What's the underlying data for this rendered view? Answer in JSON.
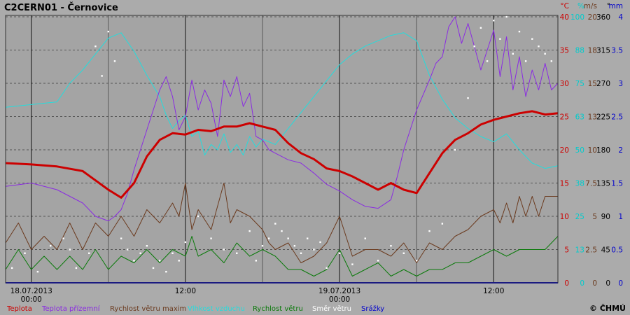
{
  "chart_data": {
    "type": "line",
    "title": "C2CERN01 - Černovice",
    "copyright": "© ČHMÚ",
    "x_axis": {
      "range": [
        "2013-07-18 00:00",
        "2013-07-19 18:00"
      ],
      "ticks": [
        {
          "line1": "18.07.2013",
          "line2": "00:00",
          "t": 0
        },
        {
          "line1": "12:00",
          "line2": "",
          "t": 12
        },
        {
          "line1": "19.07.2013",
          "line2": "00:00",
          "t": 24
        },
        {
          "line1": "12:00",
          "line2": "",
          "t": 36
        }
      ]
    },
    "y_axes": [
      {
        "unit": "°C",
        "color": "#cc0000",
        "ticks": [
          "0",
          "5",
          "10",
          "15",
          "20",
          "25",
          "30",
          "35",
          "40"
        ]
      },
      {
        "unit": "%",
        "color": "#00cccc",
        "ticks": [
          "0",
          "13",
          "25",
          "38",
          "50",
          "63",
          "75",
          "88",
          "100"
        ]
      },
      {
        "unit": "m/s",
        "color": "#6b3a1e",
        "ticks": [
          "0",
          "2.5",
          "5",
          "7.5",
          "10",
          "13",
          "15",
          "18",
          "20"
        ]
      },
      {
        "unit": "°",
        "color": "#000000",
        "ticks": [
          "0",
          "45",
          "90",
          "135",
          "180",
          "225",
          "270",
          "315",
          "360"
        ]
      },
      {
        "unit": "mm",
        "color": "#0000cc",
        "ticks": [
          "0",
          "0.5",
          "1",
          "1.5",
          "2",
          "2.5",
          "3",
          "3.5",
          "4"
        ]
      }
    ],
    "legend": [
      {
        "label": "Teplota",
        "color": "#cc0000"
      },
      {
        "label": "Teplota přízemní",
        "color": "#8a2be2"
      },
      {
        "label": "Rychlost větru maxim",
        "color": "#6b3a1e"
      },
      {
        "label": "Vlhkost vzduchu",
        "color": "#22dddd"
      },
      {
        "label": "Rychlost větru",
        "color": "#0a7a0a"
      },
      {
        "label": "Směr větru",
        "color": "#ffffff"
      },
      {
        "label": "Srážky",
        "color": "#0000cc"
      }
    ],
    "series": [
      {
        "name": "Teplota",
        "color": "#cc0000",
        "axis": 0,
        "width": 3,
        "x": [
          -2,
          0,
          2,
          4,
          6,
          7,
          8,
          9,
          10,
          11,
          12,
          13,
          14,
          15,
          16,
          17,
          18,
          19,
          20,
          21,
          22,
          23,
          24,
          25,
          26,
          27,
          28,
          29,
          30,
          31,
          32,
          33,
          34,
          35,
          36,
          37,
          38,
          39,
          40,
          41
        ],
        "y": [
          18,
          17.8,
          17.5,
          16.8,
          14,
          12.8,
          15,
          19,
          21.5,
          22.5,
          22.3,
          23,
          22.8,
          23.5,
          23.5,
          24,
          23.5,
          23,
          21,
          19.5,
          18.6,
          17.2,
          16.8,
          16,
          15,
          14,
          15,
          14,
          13.5,
          16.5,
          19.5,
          21.5,
          22.5,
          23.8,
          24.5,
          25,
          25.5,
          25.8,
          25.3,
          25.5
        ]
      },
      {
        "name": "Teplota přízemní",
        "color": "#8a2be2",
        "axis": 0,
        "width": 1,
        "x": [
          -2,
          0,
          2,
          4,
          5,
          6,
          6.5,
          7,
          7.5,
          8,
          9,
          10,
          10.5,
          11,
          11.5,
          12,
          12.5,
          13,
          13.5,
          14,
          14.5,
          15,
          15.5,
          16,
          16.5,
          17,
          17.5,
          18,
          18.5,
          19,
          20,
          21,
          22,
          23,
          24,
          25,
          26,
          27,
          28,
          28.5,
          29,
          30,
          31,
          31.5,
          32,
          32.5,
          33,
          33.5,
          34,
          35,
          36,
          36.5,
          37,
          37.5,
          38,
          38.5,
          39,
          39.5,
          40,
          40.5,
          41
        ],
        "y": [
          14.5,
          15,
          14,
          12,
          10,
          9.3,
          10,
          11,
          13.5,
          17,
          23,
          29,
          31,
          28,
          23,
          25,
          30.5,
          26,
          29,
          27,
          22,
          30.5,
          28,
          31,
          26.5,
          28.5,
          22,
          21.5,
          20,
          19.5,
          18.5,
          18,
          16.5,
          14.8,
          13.8,
          12.5,
          11.5,
          11.2,
          12.5,
          16,
          20,
          26,
          30.5,
          33,
          34,
          38.5,
          40,
          36,
          39,
          32,
          38,
          31,
          37,
          29,
          34,
          28,
          32,
          29,
          33,
          29,
          30
        ]
      },
      {
        "name": "Vlhkost vzduchu",
        "color": "#22dddd",
        "axis": 1,
        "width": 1,
        "x": [
          -2,
          0,
          2,
          3,
          4,
          5,
          6,
          7,
          8,
          9,
          10,
          10.5,
          11,
          11.5,
          12,
          12.5,
          13,
          13.5,
          14,
          14.5,
          15,
          15.5,
          16,
          16.5,
          17,
          17.5,
          18,
          19,
          20,
          21,
          22,
          23,
          24,
          25,
          26,
          27,
          28,
          29,
          30,
          31,
          32,
          33,
          34,
          35,
          36,
          37,
          38,
          39,
          40,
          41
        ],
        "y": [
          66,
          67,
          68,
          75,
          80,
          86,
          92,
          94,
          87,
          78,
          70,
          63,
          58,
          61,
          63,
          55,
          57,
          48,
          52,
          50,
          56,
          49,
          52,
          48,
          55,
          51,
          54,
          52,
          58,
          64,
          70,
          76,
          82,
          86,
          89,
          91,
          93,
          94,
          91,
          78,
          69,
          62,
          58,
          55,
          53,
          56,
          50,
          45,
          43,
          44
        ]
      },
      {
        "name": "Rychlost větru maxim",
        "color": "#6b3a1e",
        "axis": 2,
        "width": 1,
        "x": [
          -2,
          -1,
          0,
          1,
          2,
          3,
          4,
          5,
          6,
          7,
          8,
          9,
          10,
          11,
          11.5,
          12,
          12.5,
          13,
          14,
          15,
          15.5,
          16,
          17,
          18,
          18.5,
          19,
          20,
          21,
          22,
          23,
          24,
          25,
          26,
          27,
          28,
          29,
          30,
          31,
          32,
          33,
          34,
          35,
          36,
          36.5,
          37,
          37.5,
          38,
          38.5,
          39,
          39.5,
          40,
          41
        ],
        "y": [
          3,
          4.5,
          2.5,
          3.5,
          2.5,
          4.5,
          2.5,
          4.5,
          3.5,
          5,
          3.5,
          5.5,
          4.5,
          6,
          5,
          7.5,
          4,
          5.5,
          4,
          7.5,
          4.5,
          5.5,
          5,
          4,
          3,
          2.5,
          3,
          1.5,
          2,
          3,
          5,
          2,
          2.5,
          2.5,
          2,
          3,
          1.5,
          3,
          2.5,
          3.5,
          4,
          5,
          5.5,
          4.5,
          6,
          4.5,
          6.5,
          5,
          6.5,
          5,
          6.5,
          6.5
        ]
      },
      {
        "name": "Rychlost větru",
        "color": "#0a7a0a",
        "axis": 2,
        "width": 1,
        "x": [
          -2,
          -1,
          0,
          1,
          2,
          3,
          4,
          5,
          6,
          7,
          8,
          9,
          10,
          11,
          12,
          12.5,
          13,
          14,
          15,
          16,
          17,
          18,
          19,
          20,
          21,
          22,
          23,
          24,
          25,
          26,
          27,
          28,
          29,
          30,
          31,
          32,
          33,
          34,
          35,
          36,
          37,
          38,
          39,
          40,
          41
        ],
        "y": [
          1,
          2.5,
          1,
          2,
          1,
          2,
          1,
          2.5,
          1,
          2,
          1.5,
          2.5,
          1.5,
          2.5,
          2,
          3.5,
          2,
          2.5,
          1.5,
          3,
          2,
          2.5,
          2,
          1,
          1,
          0.5,
          1,
          2.5,
          0.5,
          1,
          1.5,
          0.5,
          1,
          0.5,
          1,
          1,
          1.5,
          1.5,
          2,
          2.5,
          2,
          2.5,
          2.5,
          2.5,
          3.5
        ]
      },
      {
        "name": "Srážky",
        "color": "#0000cc",
        "axis": 4,
        "width": 2,
        "x": [
          -2,
          41
        ],
        "y": [
          0,
          0
        ]
      }
    ],
    "wind_direction_points": {
      "color": "#ffffff",
      "x": [
        -1.5,
        -0.5,
        0.5,
        1.5,
        2.5,
        3,
        3.5,
        4.5,
        5,
        5.5,
        6,
        6.5,
        7,
        7.5,
        8,
        8.5,
        9,
        9.5,
        10,
        10.5,
        11,
        11.5,
        12,
        13,
        14,
        15,
        16,
        17,
        17.5,
        18,
        18.5,
        19,
        19.5,
        20,
        20.5,
        21,
        21.5,
        22,
        22.5,
        23,
        24,
        25,
        26,
        27,
        28,
        29,
        30,
        31,
        32,
        33,
        34,
        34.5,
        35,
        35.5,
        36,
        36.5,
        37,
        37.5,
        38,
        38.5,
        39,
        39.5,
        40,
        40.5
      ],
      "y": [
        20,
        40,
        15,
        50,
        60,
        45,
        20,
        40,
        320,
        280,
        340,
        300,
        60,
        45,
        30,
        40,
        50,
        20,
        30,
        15,
        40,
        30,
        55,
        90,
        60,
        45,
        40,
        70,
        30,
        50,
        60,
        80,
        70,
        60,
        50,
        40,
        60,
        45,
        55,
        20,
        40,
        25,
        60,
        30,
        50,
        40,
        30,
        70,
        80,
        180,
        250,
        320,
        345,
        300,
        355,
        330,
        360,
        310,
        340,
        300,
        330,
        320,
        310,
        300
      ]
    }
  }
}
